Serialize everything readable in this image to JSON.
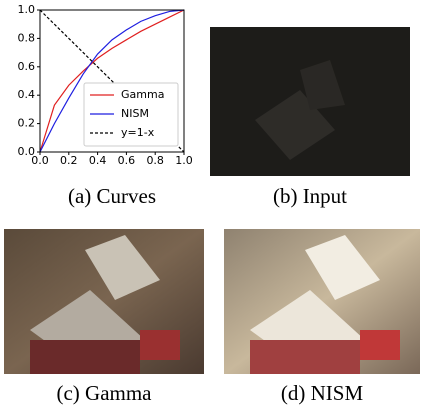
{
  "chart_data": {
    "type": "line",
    "x": [
      0,
      0.1,
      0.2,
      0.3,
      0.4,
      0.5,
      0.6,
      0.7,
      0.8,
      0.9,
      1
    ],
    "series": [
      {
        "name": "Gamma",
        "color": "#e02020",
        "values": [
          0,
          0.33,
          0.47,
          0.57,
          0.66,
          0.73,
          0.79,
          0.85,
          0.9,
          0.95,
          1
        ]
      },
      {
        "name": "NISM",
        "color": "#1f1fe0",
        "values": [
          0,
          0.2,
          0.38,
          0.55,
          0.69,
          0.79,
          0.86,
          0.92,
          0.96,
          0.99,
          1
        ]
      },
      {
        "name": "y=1-x",
        "color": "#000000",
        "dash": true,
        "values": [
          1,
          0.9,
          0.8,
          0.7,
          0.6,
          0.5,
          0.4,
          0.3,
          0.2,
          0.1,
          0
        ]
      }
    ],
    "xlim": [
      0,
      1
    ],
    "ylim": [
      0,
      1
    ],
    "xticks": [
      {
        "value": 0,
        "label": "0.0"
      },
      0.2,
      0.4,
      0.6,
      0.8,
      {
        "value": 1,
        "label": "1.0"
      }
    ],
    "yticks": [
      {
        "value": 0,
        "label": "0.0"
      },
      0.2,
      0.4,
      0.6,
      0.8,
      {
        "value": 1,
        "label": "1.0"
      }
    ],
    "grid": false,
    "legend": "lower right"
  },
  "captions": [
    "(a) Curves",
    "(b) Input",
    "(c) Gamma",
    "(d) NISM"
  ]
}
